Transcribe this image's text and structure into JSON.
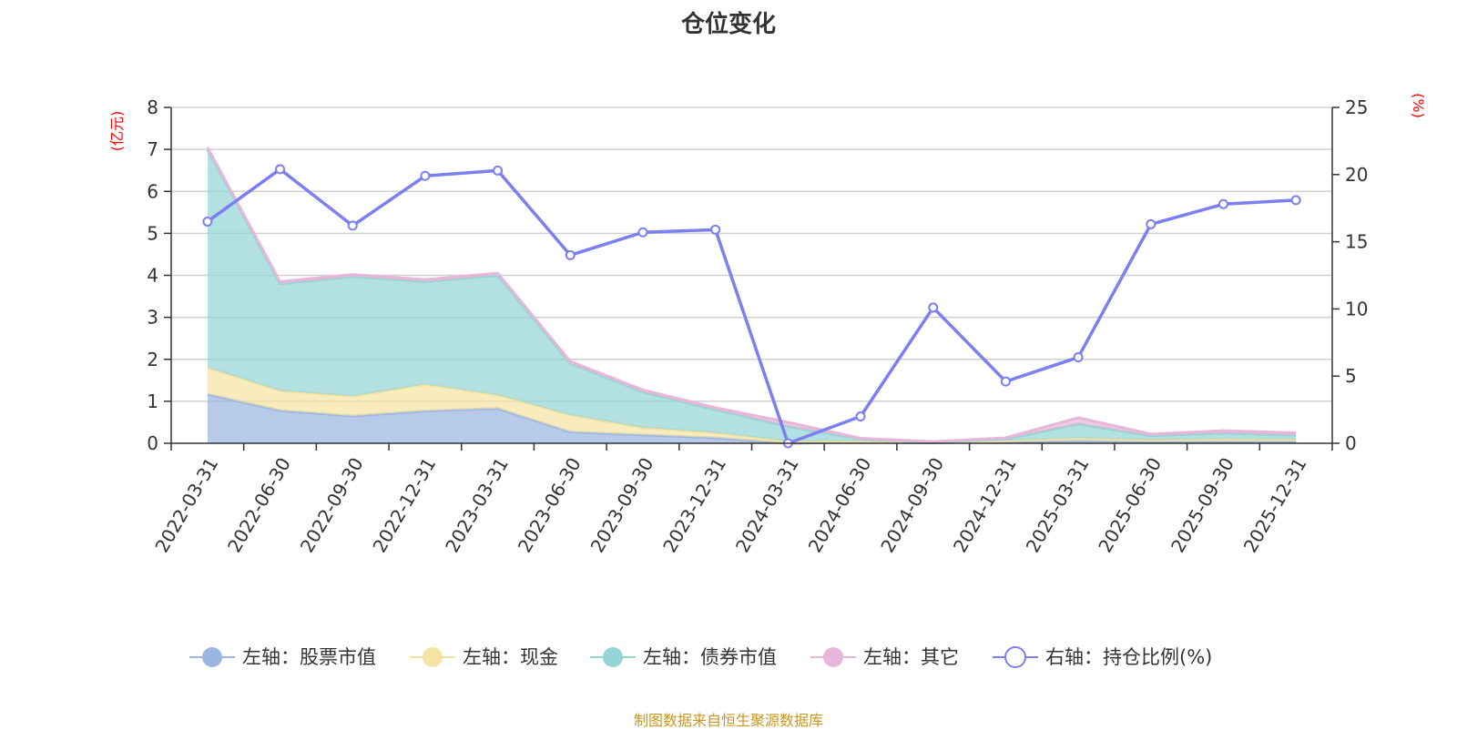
{
  "chart_data": {
    "type": "area",
    "title": "仓位变化",
    "source": "制图数据来自恒生聚源数据库",
    "categories": [
      "2022-03-31",
      "2022-06-30",
      "2022-09-30",
      "2022-12-31",
      "2023-03-31",
      "2023-06-30",
      "2023-09-30",
      "2023-12-31",
      "2024-03-31",
      "2024-06-30",
      "2024-09-30",
      "2024-12-31",
      "2025-03-31",
      "2025-06-30",
      "2025-09-30",
      "2025-12-31"
    ],
    "left_axis": {
      "unit": "(亿元)",
      "min": 0,
      "max": 8,
      "ticks": [
        0,
        1,
        2,
        3,
        4,
        5,
        6,
        7,
        8
      ]
    },
    "right_axis": {
      "unit": "(%)",
      "min": 0,
      "max": 25,
      "ticks": [
        0,
        5,
        10,
        15,
        20,
        25
      ]
    },
    "series": [
      {
        "name": "左轴：股票市值",
        "axis": "left",
        "stacked": true,
        "color": "#9bb6e0",
        "values": [
          1.17,
          0.78,
          0.65,
          0.77,
          0.83,
          0.27,
          0.2,
          0.13,
          0.0,
          0.03,
          0.01,
          0.04,
          0.06,
          0.04,
          0.05,
          0.05
        ]
      },
      {
        "name": "左轴：现金",
        "axis": "left",
        "stacked": true,
        "color": "#f5e3a3",
        "values": [
          0.63,
          0.47,
          0.47,
          0.63,
          0.32,
          0.4,
          0.17,
          0.12,
          0.05,
          0.02,
          0.01,
          0.02,
          0.06,
          0.04,
          0.05,
          0.04
        ]
      },
      {
        "name": "左轴：债券市值",
        "axis": "left",
        "stacked": true,
        "color": "#96d5d5",
        "values": [
          5.2,
          2.55,
          2.85,
          2.45,
          2.85,
          1.23,
          0.85,
          0.55,
          0.35,
          0.05,
          0.01,
          0.04,
          0.34,
          0.1,
          0.14,
          0.1
        ]
      },
      {
        "name": "左轴：其它",
        "axis": "left",
        "stacked": true,
        "color": "#e7b6da",
        "values": [
          0.05,
          0.05,
          0.05,
          0.05,
          0.05,
          0.05,
          0.05,
          0.05,
          0.1,
          0.02,
          0.01,
          0.03,
          0.15,
          0.04,
          0.06,
          0.06
        ]
      },
      {
        "name": "右轴：持仓比例(%)",
        "axis": "right",
        "stacked": false,
        "color": "#7b7ff0",
        "values": [
          16.5,
          20.4,
          16.2,
          19.9,
          20.3,
          14.0,
          15.7,
          15.9,
          0.0,
          2.0,
          10.1,
          4.6,
          6.4,
          16.3,
          17.8,
          18.1
        ]
      }
    ]
  }
}
